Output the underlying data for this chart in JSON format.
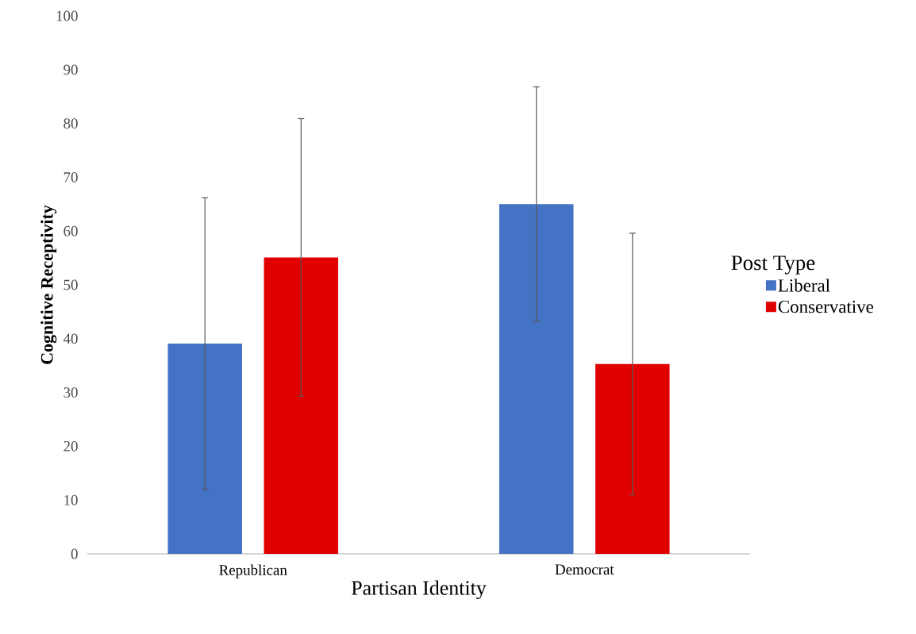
{
  "chart_data": {
    "type": "bar",
    "xlabel": "Partisan Identity",
    "ylabel": "Cognitive Receptivity",
    "legend_title": "Post Type",
    "categories": [
      "Republican",
      "Democrat"
    ],
    "series": [
      {
        "name": "Liberal",
        "color": "#4472c4",
        "values": [
          39.1,
          65.0
        ],
        "errors": [
          27.1,
          21.8
        ]
      },
      {
        "name": "Conservative",
        "color": "#e00000",
        "values": [
          55.1,
          35.3
        ],
        "errors": [
          25.8,
          24.3
        ]
      }
    ],
    "ylim": [
      0,
      100
    ],
    "yticks": [
      0,
      10,
      20,
      30,
      40,
      50,
      60,
      70,
      80,
      90,
      100
    ],
    "grid": false,
    "legend": "right"
  }
}
